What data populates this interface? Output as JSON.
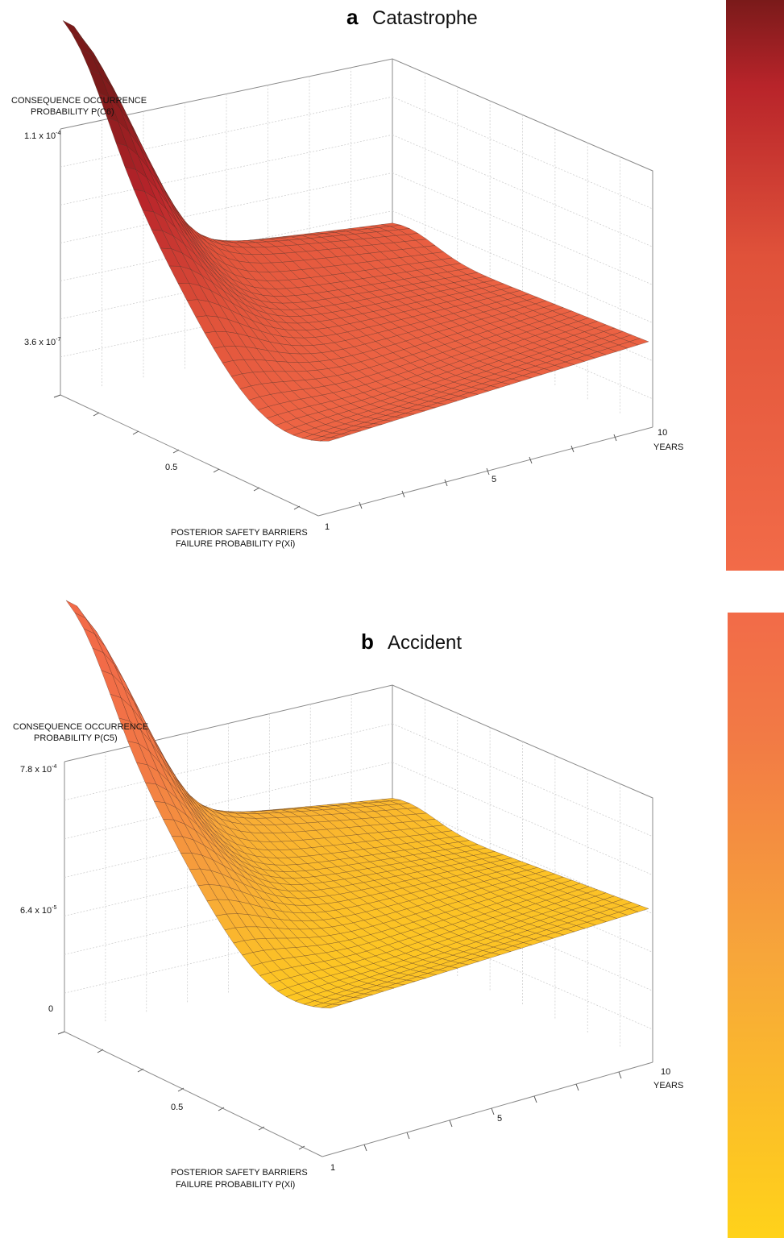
{
  "chart_data": [
    {
      "type": "surface",
      "panel": "a",
      "title": "Catastrophe",
      "zlabel_line1": "CONSEQUENCE OCCURRENCE",
      "zlabel_line2": "PROBABILITY P(C6)",
      "z_tick_top": "1.1 x 10",
      "z_tick_top_exp": "-4",
      "z_tick_mid": "3.6 x 10",
      "z_tick_mid_exp": "-7",
      "xlabel_line1": "POSTERIOR SAFETY BARRIERS",
      "xlabel_line2": "FAILURE PROBABILITY P(Xi)",
      "x_ticks": [
        "0.5",
        "1"
      ],
      "y_ticks": [
        "5",
        "10"
      ],
      "ylabel": "YEARS",
      "colors": [
        "#f26b48",
        "#e0523a",
        "#b8242a",
        "#7a1a1a"
      ]
    },
    {
      "type": "surface",
      "panel": "b",
      "title": "Accident",
      "zlabel_line1": "CONSEQUENCE OCCURRENCE",
      "zlabel_line2": "PROBABILITY P(C5)",
      "z_tick_top": "7.8 x 10",
      "z_tick_top_exp": "-4",
      "z_tick_mid": "6.4 x 10",
      "z_tick_mid_exp": "-5",
      "z_tick_low": "0",
      "xlabel_line1": "POSTERIOR SAFETY BARRIERS",
      "xlabel_line2": "FAILURE PROBABILITY P(Xi)",
      "x_ticks": [
        "0.5",
        "1"
      ],
      "y_ticks": [
        "5",
        "10"
      ],
      "ylabel": "YEARS",
      "colors": [
        "#ffd21a",
        "#f7a63a",
        "#f27a45",
        "#f26b48"
      ]
    }
  ]
}
